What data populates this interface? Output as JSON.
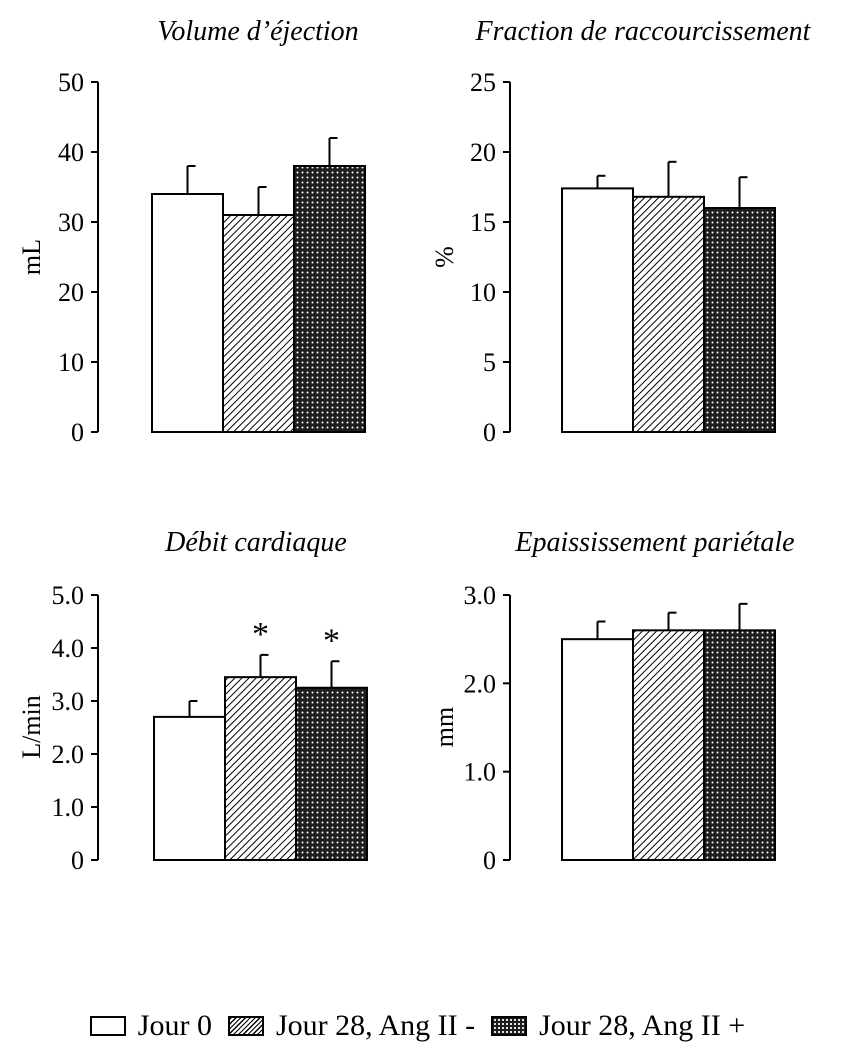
{
  "chart_data": [
    {
      "type": "bar",
      "title": "Volume d’éjection",
      "ylabel": "mL",
      "ylim": [
        0,
        50
      ],
      "yticks": [
        0,
        10,
        20,
        30,
        40,
        50
      ],
      "ytick_labels": [
        "0",
        "10",
        "20",
        "30",
        "40",
        "50"
      ],
      "categories": [
        "Jour 0",
        "Jour 28, Ang II -",
        "Jour 28, Ang II +"
      ],
      "values": [
        34,
        31,
        38
      ],
      "errors": [
        4,
        4,
        4
      ],
      "significance": [
        "",
        "",
        ""
      ]
    },
    {
      "type": "bar",
      "title": "Fraction de raccourcissement",
      "ylabel": "%",
      "ylim": [
        0,
        25
      ],
      "yticks": [
        0,
        5,
        10,
        15,
        20,
        25
      ],
      "ytick_labels": [
        "0",
        "5",
        "10",
        "15",
        "20",
        "25"
      ],
      "categories": [
        "Jour 0",
        "Jour 28, Ang II -",
        "Jour 28, Ang II +"
      ],
      "values": [
        17.4,
        16.8,
        16.0
      ],
      "errors": [
        0.9,
        2.5,
        2.2
      ],
      "significance": [
        "",
        "",
        ""
      ]
    },
    {
      "type": "bar",
      "title": "Débit cardiaque",
      "ylabel": "L/min",
      "ylim": [
        0,
        5
      ],
      "yticks": [
        0,
        1,
        2,
        3,
        4,
        5
      ],
      "ytick_labels": [
        "0",
        "1.0",
        "2.0",
        "3.0",
        "4.0",
        "5.0"
      ],
      "categories": [
        "Jour 0",
        "Jour 28, Ang II -",
        "Jour 28, Ang II +"
      ],
      "values": [
        2.7,
        3.45,
        3.25
      ],
      "errors": [
        0.3,
        0.42,
        0.5
      ],
      "significance": [
        "",
        "*",
        "*"
      ]
    },
    {
      "type": "bar",
      "title": "Epaississement pariétale",
      "ylabel": "mm",
      "ylim": [
        0,
        3
      ],
      "yticks": [
        0,
        1,
        2,
        3
      ],
      "ytick_labels": [
        "0",
        "1.0",
        "2.0",
        "3.0"
      ],
      "categories": [
        "Jour 0",
        "Jour 28, Ang II -",
        "Jour 28, Ang II +"
      ],
      "values": [
        2.5,
        2.6,
        2.6
      ],
      "errors": [
        0.2,
        0.2,
        0.3
      ],
      "significance": [
        "",
        "",
        ""
      ]
    }
  ],
  "legend": {
    "items": [
      {
        "label": "Jour 0",
        "fill": "white"
      },
      {
        "label": "Jour 28, Ang II -",
        "fill": "hatched"
      },
      {
        "label": "Jour 28, Ang II +",
        "fill": "dotted"
      }
    ]
  }
}
